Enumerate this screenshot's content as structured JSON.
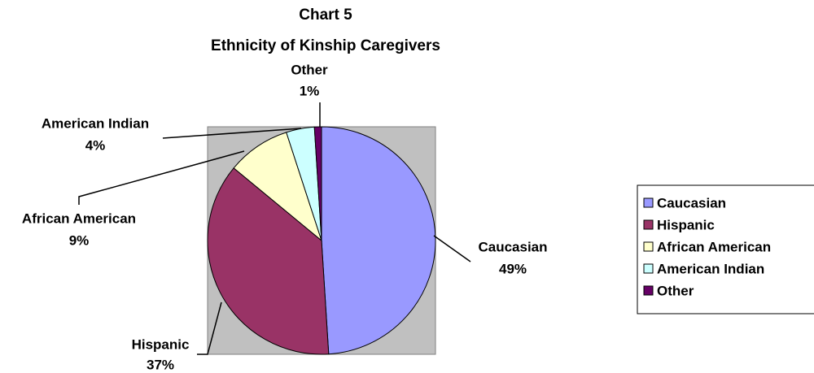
{
  "chart_data": {
    "type": "pie",
    "title": "Chart 5",
    "subtitle": "Ethnicity of Kinship Caregivers",
    "categories": [
      "Caucasian",
      "Hispanic",
      "African American",
      "American Indian",
      "Other"
    ],
    "values": [
      49,
      37,
      9,
      4,
      1
    ],
    "value_labels": [
      "49%",
      "37%",
      "9%",
      "4%",
      "1%"
    ],
    "colors": [
      "#9999ff",
      "#993366",
      "#ffffcc",
      "#ccffff",
      "#660066"
    ],
    "legend": "right"
  }
}
